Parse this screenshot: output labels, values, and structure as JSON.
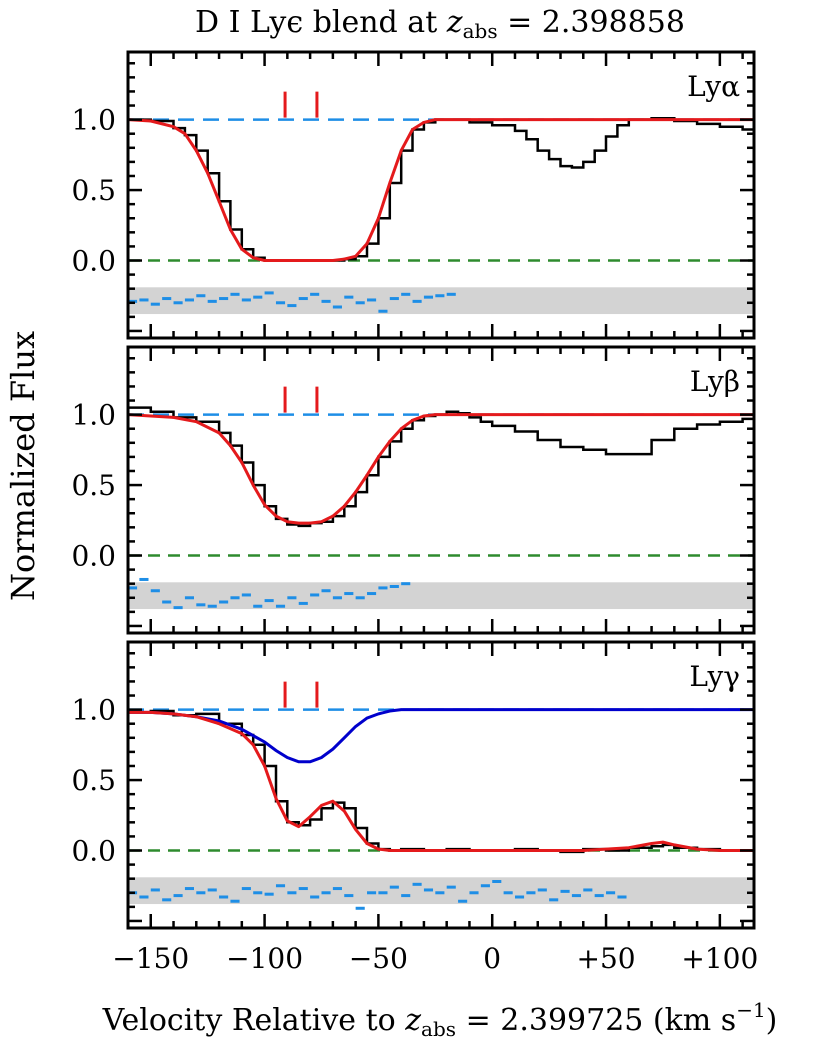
{
  "title": {
    "main": "D I Lyϵ blend at ",
    "zvar": "z",
    "zsub": "abs",
    "zval": " = 2.398858"
  },
  "xlabel": {
    "main": "Velocity Relative to ",
    "zvar": "z",
    "zsub": "abs",
    "zval": " = 2.399725 (km s",
    "exp": "−1",
    "close": ")"
  },
  "ylabel": "Normalized Flux",
  "colors": {
    "data": "#000000",
    "model": "#e41a1c",
    "continuum": "#1e8ee6",
    "zero": "#2e8b2e",
    "residual": "#1e8ee6",
    "residual_band": "#d3d3d3",
    "blend": "#0000cc",
    "tick_marks": "#e41a1c"
  },
  "chart_data": [
    {
      "type": "line",
      "panel": "Lyα",
      "label": "Lyα",
      "xlim": [
        -160,
        115
      ],
      "ylim": [
        -0.55,
        1.48
      ],
      "xticks": [
        -150,
        -100,
        -50,
        0,
        50,
        100
      ],
      "xtick_labels": [
        "−150",
        "−100",
        "−50",
        "0",
        "+50",
        "+100"
      ],
      "yticks": [
        0.0,
        0.5,
        1.0
      ],
      "ytick_labels": [
        "0.0",
        "0.5",
        "1.0"
      ],
      "component_markers": [
        -91,
        -77
      ],
      "residual_band": [
        -0.38,
        -0.19
      ],
      "data_x": [
        -160,
        -150,
        -140,
        -135,
        -130,
        -125,
        -120,
        -115,
        -110,
        -105,
        -100,
        -95,
        -90,
        -80,
        -70,
        -65,
        -60,
        -55,
        -50,
        -45,
        -40,
        -35,
        -30,
        -25,
        -20,
        -10,
        0,
        10,
        15,
        20,
        25,
        30,
        35,
        40,
        45,
        50,
        55,
        60,
        70,
        80,
        90,
        100,
        110,
        115
      ],
      "data_y": [
        1.0,
        0.99,
        0.94,
        0.89,
        0.78,
        0.62,
        0.42,
        0.22,
        0.08,
        0.02,
        0.0,
        0.0,
        0.0,
        0.0,
        0.0,
        0.01,
        0.03,
        0.12,
        0.3,
        0.55,
        0.78,
        0.93,
        0.98,
        1.0,
        1.0,
        0.98,
        0.96,
        0.92,
        0.86,
        0.78,
        0.72,
        0.67,
        0.66,
        0.7,
        0.78,
        0.88,
        0.96,
        1.0,
        1.01,
        0.99,
        0.97,
        0.95,
        0.93,
        0.93
      ],
      "model_x": [
        -160,
        -150,
        -140,
        -135,
        -130,
        -125,
        -120,
        -115,
        -110,
        -105,
        -100,
        -95,
        -90,
        -80,
        -70,
        -65,
        -60,
        -55,
        -50,
        -45,
        -40,
        -35,
        -30,
        -25,
        -20,
        0,
        50,
        115
      ],
      "model_y": [
        1.0,
        0.99,
        0.95,
        0.9,
        0.78,
        0.62,
        0.42,
        0.22,
        0.08,
        0.02,
        0.0,
        0.0,
        0.0,
        0.0,
        0.0,
        0.01,
        0.03,
        0.12,
        0.3,
        0.55,
        0.78,
        0.93,
        0.98,
        1.0,
        1.0,
        1.0,
        1.0,
        1.0
      ],
      "residual_x": [
        -160,
        -155,
        -150,
        -145,
        -140,
        -135,
        -130,
        -125,
        -120,
        -115,
        -110,
        -105,
        -100,
        -95,
        -90,
        -85,
        -80,
        -75,
        -70,
        -65,
        -60,
        -55,
        -50,
        -45,
        -40,
        -35,
        -30,
        -25,
        -20
      ],
      "residual_y": [
        -0.29,
        -0.28,
        -0.31,
        -0.27,
        -0.3,
        -0.28,
        -0.25,
        -0.29,
        -0.27,
        -0.24,
        -0.28,
        -0.26,
        -0.23,
        -0.3,
        -0.32,
        -0.27,
        -0.24,
        -0.29,
        -0.33,
        -0.26,
        -0.3,
        -0.28,
        -0.36,
        -0.27,
        -0.24,
        -0.29,
        -0.26,
        -0.25,
        -0.24
      ],
      "blend_x": [],
      "blend_y": []
    },
    {
      "type": "line",
      "panel": "Lyβ",
      "label": "Lyβ",
      "xlim": [
        -160,
        115
      ],
      "ylim": [
        -0.55,
        1.48
      ],
      "xticks": [
        -150,
        -100,
        -50,
        0,
        50,
        100
      ],
      "xtick_labels": [
        "−150",
        "−100",
        "−50",
        "0",
        "+50",
        "+100"
      ],
      "yticks": [
        0.0,
        0.5,
        1.0
      ],
      "ytick_labels": [
        "0.0",
        "0.5",
        "1.0"
      ],
      "component_markers": [
        -91,
        -77
      ],
      "residual_band": [
        -0.38,
        -0.19
      ],
      "data_x": [
        -160,
        -150,
        -140,
        -130,
        -120,
        -115,
        -110,
        -105,
        -100,
        -95,
        -90,
        -85,
        -80,
        -75,
        -70,
        -65,
        -60,
        -55,
        -50,
        -45,
        -40,
        -35,
        -30,
        -25,
        -20,
        -15,
        -10,
        -5,
        0,
        10,
        20,
        30,
        40,
        50,
        60,
        70,
        80,
        90,
        100,
        110,
        115
      ],
      "data_y": [
        1.05,
        1.02,
        0.98,
        0.95,
        0.87,
        0.78,
        0.66,
        0.5,
        0.35,
        0.26,
        0.22,
        0.21,
        0.23,
        0.24,
        0.28,
        0.35,
        0.45,
        0.57,
        0.7,
        0.81,
        0.9,
        0.96,
        0.99,
        1.0,
        1.02,
        1.01,
        0.98,
        0.95,
        0.92,
        0.88,
        0.82,
        0.77,
        0.75,
        0.72,
        0.72,
        0.82,
        0.9,
        0.93,
        0.95,
        0.97,
        0.97
      ],
      "model_x": [
        -160,
        -150,
        -140,
        -130,
        -120,
        -115,
        -110,
        -105,
        -100,
        -95,
        -90,
        -85,
        -80,
        -75,
        -70,
        -65,
        -60,
        -55,
        -50,
        -45,
        -40,
        -35,
        -30,
        -25,
        -20,
        0,
        50,
        115
      ],
      "model_y": [
        1.0,
        0.99,
        0.98,
        0.95,
        0.87,
        0.78,
        0.66,
        0.5,
        0.36,
        0.28,
        0.24,
        0.23,
        0.23,
        0.24,
        0.28,
        0.35,
        0.45,
        0.57,
        0.7,
        0.81,
        0.9,
        0.96,
        0.99,
        1.0,
        1.0,
        1.0,
        1.0,
        1.0
      ],
      "residual_x": [
        -160,
        -155,
        -150,
        -145,
        -140,
        -135,
        -130,
        -125,
        -120,
        -115,
        -110,
        -105,
        -100,
        -95,
        -90,
        -85,
        -80,
        -75,
        -70,
        -65,
        -60,
        -55,
        -50,
        -45,
        -40
      ],
      "residual_y": [
        -0.23,
        -0.17,
        -0.25,
        -0.33,
        -0.37,
        -0.3,
        -0.35,
        -0.36,
        -0.33,
        -0.3,
        -0.28,
        -0.36,
        -0.32,
        -0.36,
        -0.3,
        -0.34,
        -0.28,
        -0.25,
        -0.3,
        -0.27,
        -0.3,
        -0.27,
        -0.23,
        -0.22,
        -0.2
      ],
      "blend_x": [],
      "blend_y": []
    },
    {
      "type": "line",
      "panel": "Lyγ",
      "label": "Lyγ",
      "xlim": [
        -160,
        115
      ],
      "ylim": [
        -0.55,
        1.48
      ],
      "xticks": [
        -150,
        -100,
        -50,
        0,
        50,
        100
      ],
      "xtick_labels": [
        "−150",
        "−100",
        "−50",
        "0",
        "+50",
        "+100"
      ],
      "yticks": [
        0.0,
        0.5,
        1.0
      ],
      "ytick_labels": [
        "0.0",
        "0.5",
        "1.0"
      ],
      "component_markers": [
        -91,
        -77
      ],
      "residual_band": [
        -0.38,
        -0.19
      ],
      "data_x": [
        -160,
        -150,
        -140,
        -130,
        -120,
        -110,
        -105,
        -100,
        -95,
        -90,
        -85,
        -80,
        -75,
        -70,
        -65,
        -60,
        -55,
        -50,
        -45,
        -40,
        -30,
        -20,
        -10,
        0,
        10,
        20,
        30,
        40,
        50,
        60,
        70,
        75,
        80,
        90,
        100,
        110,
        115
      ],
      "data_y": [
        0.98,
        0.99,
        0.96,
        0.97,
        0.9,
        0.82,
        0.75,
        0.6,
        0.35,
        0.2,
        0.18,
        0.22,
        0.3,
        0.34,
        0.3,
        0.16,
        0.05,
        0.01,
        0.0,
        0.01,
        0.0,
        0.01,
        0.0,
        0.0,
        0.01,
        0.0,
        -0.01,
        0.01,
        0.0,
        0.02,
        0.03,
        0.04,
        0.02,
        0.01,
        0.0,
        0.0,
        0.0
      ],
      "model_x": [
        -160,
        -150,
        -140,
        -130,
        -120,
        -110,
        -105,
        -100,
        -95,
        -90,
        -85,
        -80,
        -75,
        -70,
        -65,
        -60,
        -55,
        -50,
        -45,
        -40,
        -30,
        -20,
        -10,
        0,
        20,
        40,
        60,
        70,
        75,
        80,
        90,
        100,
        115
      ],
      "model_y": [
        0.98,
        0.98,
        0.97,
        0.95,
        0.9,
        0.83,
        0.75,
        0.6,
        0.37,
        0.21,
        0.17,
        0.24,
        0.32,
        0.35,
        0.28,
        0.15,
        0.05,
        0.01,
        0.0,
        0.0,
        0.0,
        0.0,
        0.0,
        0.0,
        0.0,
        0.0,
        0.02,
        0.05,
        0.06,
        0.04,
        0.01,
        0.0,
        0.0
      ],
      "residual_x": [
        -160,
        -155,
        -150,
        -145,
        -140,
        -135,
        -130,
        -125,
        -120,
        -115,
        -110,
        -105,
        -100,
        -95,
        -90,
        -85,
        -80,
        -75,
        -70,
        -65,
        -60,
        -55,
        -50,
        -45,
        -40,
        -35,
        -30,
        -25,
        -20,
        -15,
        -10,
        -5,
        0,
        5,
        10,
        15,
        20,
        25,
        30,
        35,
        40,
        45,
        50,
        55
      ],
      "residual_y": [
        -0.3,
        -0.33,
        -0.28,
        -0.35,
        -0.32,
        -0.27,
        -0.3,
        -0.28,
        -0.33,
        -0.36,
        -0.27,
        -0.3,
        -0.31,
        -0.25,
        -0.3,
        -0.27,
        -0.33,
        -0.3,
        -0.27,
        -0.32,
        -0.41,
        -0.3,
        -0.3,
        -0.26,
        -0.32,
        -0.24,
        -0.28,
        -0.3,
        -0.26,
        -0.36,
        -0.3,
        -0.25,
        -0.22,
        -0.3,
        -0.33,
        -0.3,
        -0.28,
        -0.35,
        -0.29,
        -0.32,
        -0.28,
        -0.32,
        -0.3,
        -0.33
      ],
      "blend_x": [
        -160,
        -150,
        -140,
        -130,
        -120,
        -110,
        -100,
        -95,
        -90,
        -85,
        -80,
        -75,
        -70,
        -65,
        -60,
        -55,
        -50,
        -45,
        -40,
        -35,
        -30,
        0,
        50,
        115
      ],
      "blend_y": [
        0.98,
        0.98,
        0.97,
        0.95,
        0.92,
        0.86,
        0.77,
        0.71,
        0.66,
        0.63,
        0.63,
        0.66,
        0.72,
        0.8,
        0.88,
        0.94,
        0.97,
        0.99,
        1.0,
        1.0,
        1.0,
        1.0,
        1.0,
        1.0
      ]
    }
  ]
}
